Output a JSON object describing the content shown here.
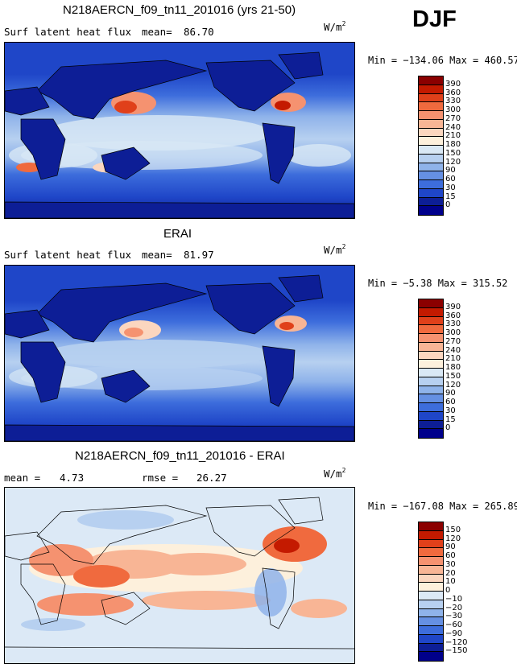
{
  "season": "DJF",
  "units": {
    "base": "W/m",
    "sup": "2"
  },
  "panels": [
    {
      "title": "N218AERCN_f09_tn11_201016 (yrs 21-50)",
      "left_label": "Surf latent heat flux",
      "mean_label": "mean=",
      "mean_value": "86.70",
      "minmax": "Min = −134.06 Max = 460.57"
    },
    {
      "title": "ERAI",
      "left_label": "Surf latent heat flux",
      "mean_label": "mean=",
      "mean_value": "81.97",
      "minmax": "Min =  −5.38 Max = 315.52"
    },
    {
      "title": "N218AERCN_f09_tn11_201016 - ERAI",
      "left_label": "mean =",
      "mean_value": "4.73",
      "rmse_label": "rmse =",
      "rmse_value": "26.27",
      "minmax": "Min = −167.08 Max = 265.89"
    }
  ],
  "colorbars": {
    "absolute": {
      "labels": [
        "390",
        "360",
        "330",
        "300",
        "270",
        "240",
        "210",
        "180",
        "150",
        "120",
        "90",
        "60",
        "30",
        "15",
        "0"
      ],
      "colors": [
        "#8b0000",
        "#c41a00",
        "#e0401a",
        "#f06a3e",
        "#f59270",
        "#f8b595",
        "#fbd6bf",
        "#fdf0dc",
        "#d9e8f5",
        "#b7d0f0",
        "#8fb3ea",
        "#6590e3",
        "#3d6ddc",
        "#1f46c8",
        "#0d1e96",
        "#00008b"
      ]
    },
    "difference": {
      "labels": [
        "150",
        "120",
        "90",
        "60",
        "30",
        "20",
        "10",
        "0",
        "−10",
        "−20",
        "−30",
        "−60",
        "−90",
        "−120",
        "−150"
      ],
      "colors": [
        "#8b0000",
        "#c41a00",
        "#e0401a",
        "#f06a3e",
        "#f59270",
        "#f8b595",
        "#fbd6bf",
        "#fdf0dc",
        "#dce9f6",
        "#b7d0f0",
        "#8fb3ea",
        "#6590e3",
        "#3d6ddc",
        "#1f46c8",
        "#0d1e96",
        "#00008b"
      ]
    }
  },
  "chart_data": [
    {
      "type": "heatmap",
      "title": "N218AERCN_f09_tn11_201016 (yrs 21-50)",
      "variable": "Surf latent heat flux",
      "units": "W/m2",
      "mean": 86.7,
      "min": -134.06,
      "max": 460.57,
      "levels": [
        0,
        15,
        30,
        60,
        90,
        120,
        150,
        180,
        210,
        240,
        270,
        300,
        330,
        360,
        390
      ]
    },
    {
      "type": "heatmap",
      "title": "ERAI",
      "variable": "Surf latent heat flux",
      "units": "W/m2",
      "mean": 81.97,
      "min": -5.38,
      "max": 315.52,
      "levels": [
        0,
        15,
        30,
        60,
        90,
        120,
        150,
        180,
        210,
        240,
        270,
        300,
        330,
        360,
        390
      ]
    },
    {
      "type": "heatmap",
      "title": "N218AERCN_f09_tn11_201016 - ERAI",
      "units": "W/m2",
      "mean": 4.73,
      "rmse": 26.27,
      "min": -167.08,
      "max": 265.89,
      "levels": [
        -150,
        -120,
        -90,
        -60,
        -30,
        -20,
        -10,
        0,
        10,
        20,
        30,
        60,
        90,
        120,
        150
      ]
    }
  ]
}
